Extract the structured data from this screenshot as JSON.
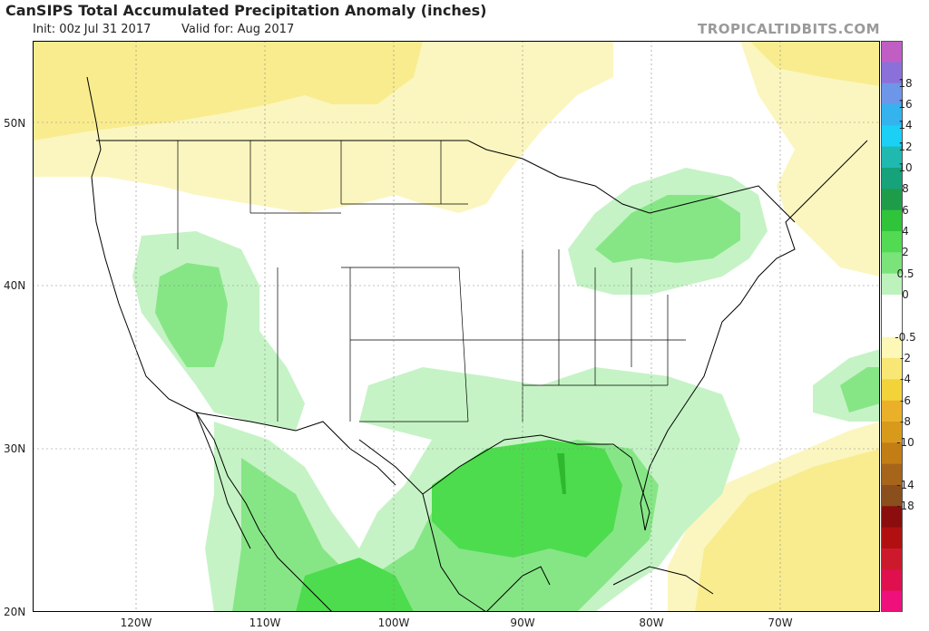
{
  "header": {
    "title": "CanSIPS Total Accumulated Precipitation Anomaly (inches)",
    "init": "Init: 00z Jul 31 2017",
    "valid": "Valid for: Aug 2017",
    "brand": "TROPICALTIDBITS.COM"
  },
  "axes": {
    "lat_labels": [
      "50N",
      "40N",
      "30N",
      "20N"
    ],
    "lon_labels": [
      "120W",
      "110W",
      "100W",
      "90W",
      "80W",
      "70W"
    ]
  },
  "colorbar": {
    "labels": [
      "18",
      "16",
      "14",
      "12",
      "10",
      "8",
      "6",
      "4",
      "2",
      "0.5",
      "0",
      "-0.5",
      "-2",
      "-4",
      "-6",
      "-8",
      "-10",
      "-14",
      "-18"
    ],
    "colors": [
      "#c05ec4",
      "#8c70d9",
      "#6d96e8",
      "#34b3ee",
      "#1ad0f5",
      "#1fb9b0",
      "#16a27a",
      "#1e9c4a",
      "#30c43a",
      "#52db52",
      "#7ae47a",
      "#bdf2bd",
      "#ffffff",
      "#ffffff",
      "#fdf7b8",
      "#f8e775",
      "#f2d33a",
      "#eab02a",
      "#d99a1b",
      "#c27d15",
      "#a6651a",
      "#8a4f1d",
      "#8b0d0d",
      "#b21010",
      "#cc1a2c",
      "#e0104f",
      "#f0107c"
    ]
  },
  "colors": {
    "dry_light": "#fbf6bf",
    "dry_mid": "#f8ec8f",
    "wet_light": "#c5f3c5",
    "wet_mid": "#86e686",
    "wet_strong": "#4ddc4d",
    "wet_max": "#2fb82f"
  }
}
